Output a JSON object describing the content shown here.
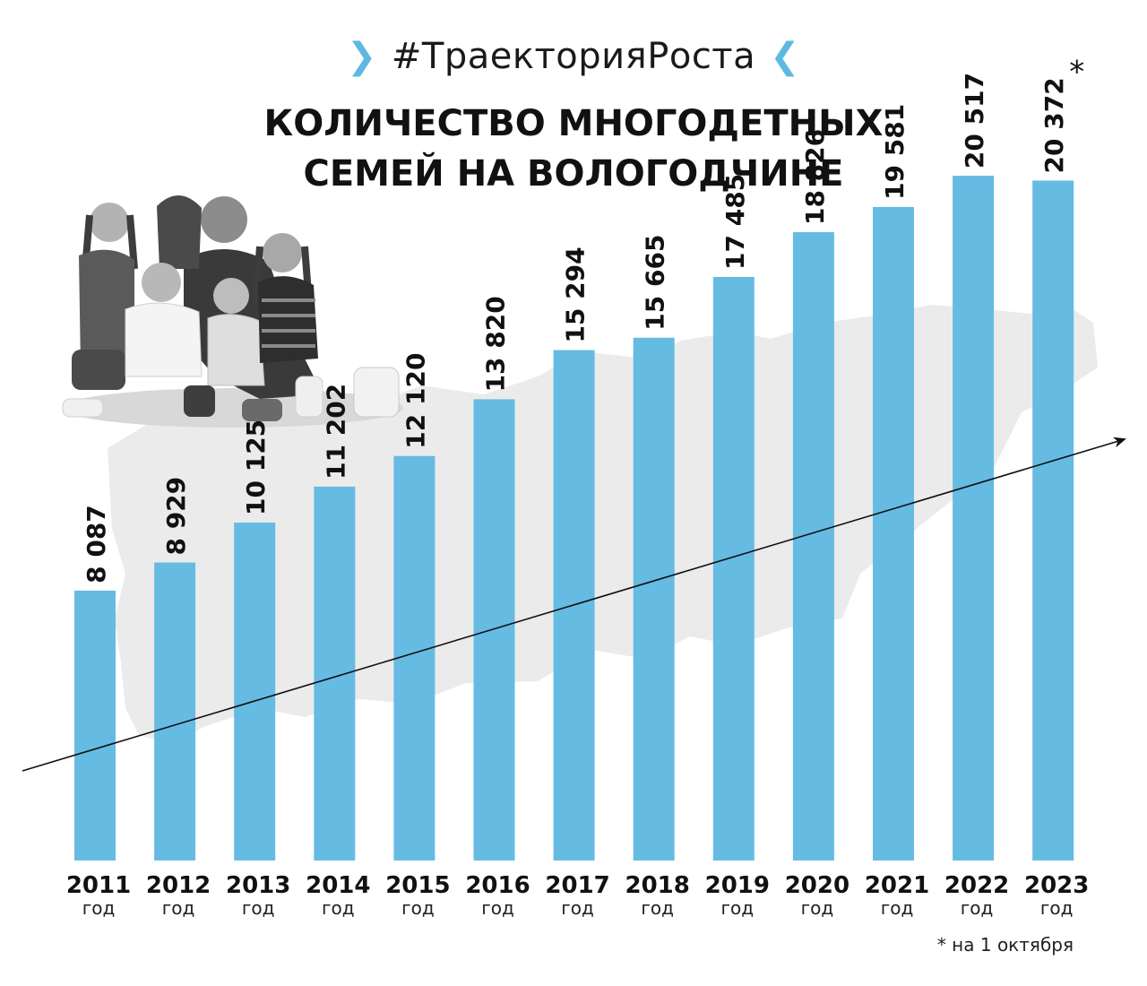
{
  "header": {
    "hashtag": "#ТраекторияРоста",
    "title_line1": "КОЛИЧЕСТВО МНОГОДЕТНЫХ",
    "title_line2": "СЕМЕЙ НА ВОЛОГОДЧИНЕ"
  },
  "colors": {
    "bar": "#66bbe3",
    "accent": "#5eb9e2",
    "map": "#ebebeb",
    "text": "#111111"
  },
  "chart_data": {
    "type": "bar",
    "categories": [
      "2011",
      "2012",
      "2013",
      "2014",
      "2015",
      "2016",
      "2017",
      "2018",
      "2019",
      "2020",
      "2021",
      "2022",
      "2023"
    ],
    "category_sublabel": "год",
    "values": [
      8087,
      8929,
      10125,
      11202,
      12120,
      13820,
      15294,
      15665,
      17485,
      18826,
      19581,
      20517,
      20372
    ],
    "value_labels": [
      "8 087",
      "8 929",
      "10 125",
      "11 202",
      "12 120",
      "13 820",
      "15 294",
      "15 665",
      "17 485",
      "18 826",
      "19 581",
      "20 517",
      "20 372"
    ],
    "value_marker": [
      "",
      "",
      "",
      "",
      "",
      "",
      "",
      "",
      "",
      "",
      "",
      "",
      "*"
    ],
    "ylim": [
      0,
      23500
    ],
    "trend_arrow": true,
    "grid": false,
    "title": "КОЛИЧЕСТВО МНОГОДЕТНЫХ СЕМЕЙ НА ВОЛОГОДЧИНЕ",
    "xlabel": "",
    "ylabel": ""
  },
  "footnote": "* на 1 октября",
  "photo": {
    "icon": "family-photo-icon"
  }
}
